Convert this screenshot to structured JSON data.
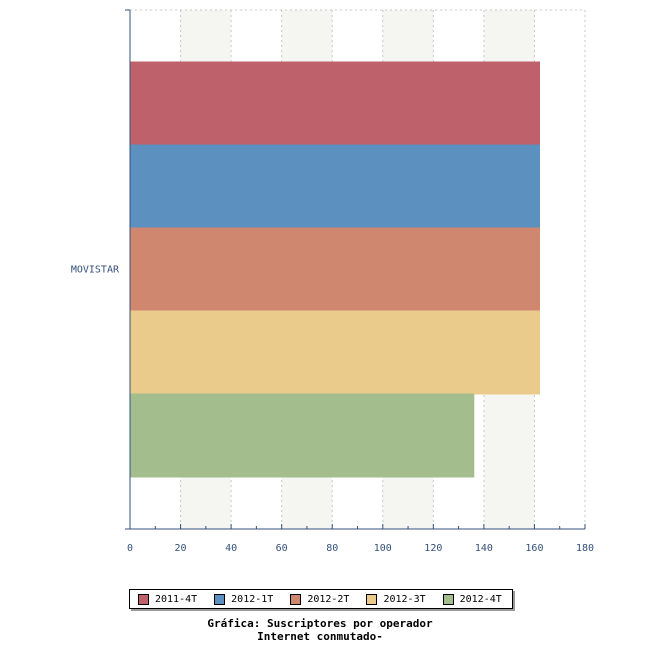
{
  "chart_data": {
    "type": "bar",
    "orientation": "horizontal",
    "categories": [
      "MOVISTAR"
    ],
    "series": [
      {
        "name": "2011-4T",
        "values": [
          162
        ],
        "color": "#bf616a"
      },
      {
        "name": "2012-1T",
        "values": [
          162
        ],
        "color": "#5b90bf"
      },
      {
        "name": "2012-2T",
        "values": [
          162
        ],
        "color": "#d08770"
      },
      {
        "name": "2012-3T",
        "values": [
          162
        ],
        "color": "#ebcb8b"
      },
      {
        "name": "2012-4T",
        "values": [
          136
        ],
        "color": "#a3be8c"
      }
    ],
    "xlim": [
      0,
      180
    ],
    "xticks": [
      0,
      20,
      40,
      60,
      80,
      100,
      120,
      140,
      160,
      180
    ],
    "grid": true,
    "legend_position": "bottom",
    "title_line1": "Gráfica: Suscriptores por operador",
    "title_line2": "Internet conmutado-"
  }
}
